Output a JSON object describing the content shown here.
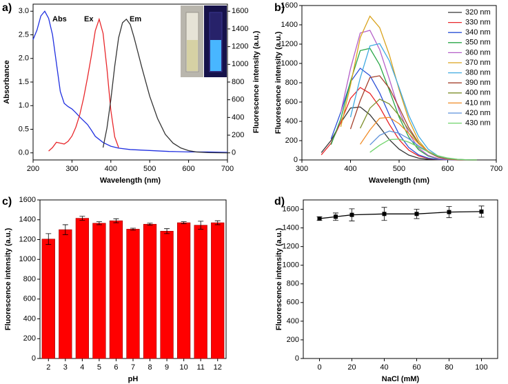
{
  "chart_data": [
    {
      "type": "line",
      "title": "a)",
      "xlabel": "Wavelength (nm)",
      "ylabel": "Absorbance",
      "y2label": "Fluorescence intensity (a.u.)",
      "xlim": [
        200,
        700
      ],
      "xticks": [
        200,
        300,
        400,
        500,
        600,
        700
      ],
      "ylim": [
        -0.15,
        3.15
      ],
      "yticks": [
        {
          "value": 0,
          "label": "0.0"
        },
        0.5,
        {
          "value": 1,
          "label": "1.0"
        },
        1.5,
        {
          "value": 2,
          "label": "2.0"
        },
        2.5,
        {
          "value": 3,
          "label": "3.0"
        }
      ],
      "y2lim": [
        -80,
        1680
      ],
      "y2ticks": [
        0,
        200,
        400,
        600,
        800,
        1000,
        1200,
        1400,
        1600
      ],
      "legend": "inline",
      "series": [
        {
          "name": "Abs",
          "color": "#1f2fe0",
          "x": [
            200,
            210,
            220,
            230,
            240,
            250,
            260,
            270,
            280,
            290,
            300,
            310,
            320,
            330,
            340,
            350,
            360,
            380,
            400,
            420,
            450,
            500,
            550,
            600,
            650,
            700
          ],
          "values": [
            2.4,
            2.6,
            2.9,
            3.0,
            2.85,
            2.5,
            1.9,
            1.3,
            1.05,
            0.98,
            0.93,
            0.85,
            0.76,
            0.68,
            0.6,
            0.48,
            0.35,
            0.22,
            0.14,
            0.1,
            0.07,
            0.05,
            0.03,
            0.02,
            0.02,
            0.01
          ]
        },
        {
          "name": "Ex",
          "color": "#e8262a",
          "axis": "y2",
          "x": [
            240,
            250,
            260,
            270,
            280,
            290,
            300,
            310,
            320,
            330,
            340,
            350,
            360,
            370,
            380,
            390,
            400,
            410,
            420
          ],
          "values": [
            20,
            60,
            120,
            110,
            100,
            130,
            190,
            290,
            430,
            620,
            850,
            1100,
            1380,
            1510,
            1350,
            950,
            480,
            180,
            60
          ]
        },
        {
          "name": "Em",
          "color": "#333333",
          "axis": "y2",
          "x": [
            380,
            390,
            400,
            410,
            420,
            430,
            440,
            450,
            460,
            470,
            480,
            500,
            520,
            540,
            560,
            580,
            600,
            620,
            650,
            700
          ],
          "values": [
            60,
            280,
            600,
            980,
            1300,
            1470,
            1510,
            1450,
            1300,
            1130,
            960,
            640,
            390,
            210,
            110,
            55,
            25,
            10,
            3,
            0
          ]
        }
      ]
    },
    {
      "type": "line",
      "title": "b)",
      "xlabel": "Wavelength (nm)",
      "ylabel": "Fluorescence intensity (a.u.)",
      "xlim": [
        300,
        700
      ],
      "xticks": [
        300,
        400,
        500,
        600,
        700
      ],
      "ylim": [
        0,
        1600
      ],
      "yticks": [
        0,
        200,
        400,
        600,
        800,
        1000,
        1200,
        1400,
        1600
      ],
      "legend": "upper right",
      "x": [
        320,
        340,
        360,
        380,
        400,
        420,
        440,
        460,
        480,
        500,
        520,
        540,
        560,
        580,
        600,
        620,
        640,
        660,
        680,
        700
      ],
      "series": [
        {
          "name": "320 nm",
          "color": "#333333",
          "values": [
            null,
            76,
            202,
            386,
            538,
            549,
            468,
            342,
            210,
            112,
            50,
            19,
            6,
            2,
            1,
            0,
            0,
            0,
            null,
            null
          ]
        },
        {
          "name": "330 nm",
          "color": "#e8262a",
          "values": [
            null,
            53,
            173,
            390,
            638,
            750,
            690,
            548,
            368,
            210,
            101,
            42,
            15,
            5,
            1,
            0,
            0,
            0,
            null,
            null
          ]
        },
        {
          "name": "340 nm",
          "color": "#2a4fd6",
          "values": [
            null,
            null,
            219,
            494,
            808,
            950,
            874,
            694,
            466,
            266,
            128,
            53,
            19,
            6,
            1,
            0,
            0,
            0,
            null,
            null
          ]
        },
        {
          "name": "350 nm",
          "color": "#27a645",
          "values": [
            null,
            null,
            159,
            425,
            814,
            1133,
            1156,
            985,
            720,
            443,
            236,
            106,
            40,
            13,
            3,
            1,
            0,
            0,
            null,
            null
          ]
        },
        {
          "name": "360 nm",
          "color": "#b45ec8",
          "values": [
            null,
            null,
            null,
            493,
            945,
            1315,
            1343,
            1144,
            836,
            514,
            274,
            123,
            47,
            15,
            4,
            1,
            0,
            0,
            null,
            null
          ]
        },
        {
          "name": "370 nm",
          "color": "#d9a21b",
          "values": [
            null,
            null,
            null,
            343,
            775,
            1267,
            1490,
            1371,
            1088,
            730,
            417,
            201,
            83,
            30,
            9,
            2,
            0,
            0,
            null,
            null
          ]
        },
        {
          "name": "380 nm",
          "color": "#3fa9e0",
          "values": [
            null,
            null,
            null,
            null,
            443,
            849,
            1181,
            1205,
            1027,
            750,
            461,
            246,
            111,
            42,
            14,
            4,
            1,
            0,
            null,
            null
          ]
        },
        {
          "name": "390 nm",
          "color": "#a5402c",
          "values": [
            null,
            null,
            null,
            null,
            320,
            614,
            854,
            872,
            743,
            543,
            334,
            178,
            80,
            30,
            10,
            3,
            1,
            0,
            null,
            null
          ]
        },
        {
          "name": "400 nm",
          "color": "#7d8f2a",
          "values": [
            null,
            null,
            null,
            null,
            null,
            328,
            536,
            630,
            580,
            460,
            309,
            176,
            85,
            35,
            13,
            4,
            1,
            0,
            null,
            null
          ]
        },
        {
          "name": "410 nm",
          "color": "#f08a24",
          "values": [
            null,
            null,
            null,
            null,
            null,
            162,
            311,
            432,
            441,
            376,
            275,
            169,
            90,
            41,
            15,
            5,
            2,
            0,
            null,
            null
          ]
        },
        {
          "name": "420 nm",
          "color": "#5b8fd9",
          "values": [
            null,
            null,
            null,
            null,
            null,
            null,
            156,
            255,
            300,
            276,
            219,
            147,
            84,
            41,
            17,
            6,
            2,
            0,
            null,
            null
          ]
        },
        {
          "name": "430 nm",
          "color": "#6fd36a",
          "values": [
            null,
            null,
            null,
            null,
            null,
            null,
            79,
            152,
            211,
            216,
            184,
            134,
            83,
            44,
            20,
            7,
            2,
            1,
            null,
            null
          ]
        }
      ]
    },
    {
      "type": "bar",
      "title": "c)",
      "xlabel": "pH",
      "ylabel": "Fluorescence intensity (a.u.)",
      "ylim": [
        0,
        1600
      ],
      "yticks": [
        0,
        200,
        400,
        600,
        800,
        1000,
        1200,
        1400,
        1600
      ],
      "categories": [
        "2",
        "3",
        "4",
        "5",
        "6",
        "7",
        "8",
        "9",
        "10",
        "11",
        "12"
      ],
      "values": [
        1205,
        1300,
        1415,
        1365,
        1390,
        1305,
        1355,
        1285,
        1370,
        1345,
        1370
      ],
      "errors": [
        55,
        50,
        20,
        15,
        20,
        10,
        10,
        25,
        10,
        40,
        20
      ],
      "color": "#ff0000"
    },
    {
      "type": "line",
      "title": "d)",
      "xlabel": "NaCl (mM)",
      "ylabel": "Fluorescence intensity (a.u.)",
      "xlim": [
        -10,
        110
      ],
      "xticks": [
        0,
        20,
        40,
        60,
        80,
        100
      ],
      "ylim": [
        0,
        1700
      ],
      "yticks": [
        0,
        200,
        400,
        600,
        800,
        1000,
        1200,
        1400,
        1600
      ],
      "marker": "square",
      "x": [
        0,
        10,
        20,
        40,
        60,
        80,
        100
      ],
      "series": [
        {
          "color": "#000000",
          "values": [
            1500,
            1520,
            1540,
            1550,
            1550,
            1570,
            1575
          ],
          "errors": [
            20,
            40,
            65,
            70,
            50,
            60,
            60
          ]
        }
      ]
    }
  ]
}
